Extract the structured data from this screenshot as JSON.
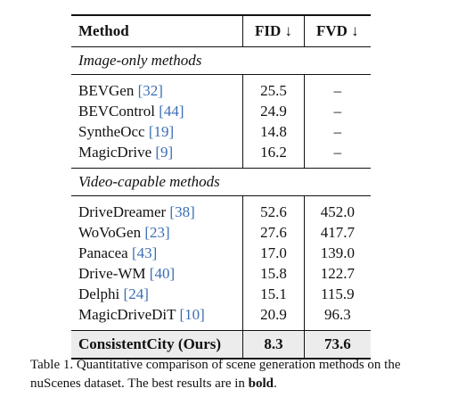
{
  "table": {
    "headers": {
      "method": "Method",
      "fid": "FID ↓",
      "fvd": "FVD ↓"
    },
    "sections": [
      {
        "title": "Image-only methods",
        "rows": [
          {
            "method": "BEVGen ",
            "cite": "[32]",
            "fid": "25.5",
            "fvd": "–"
          },
          {
            "method": "BEVControl ",
            "cite": "[44]",
            "fid": "24.9",
            "fvd": "–"
          },
          {
            "method": "SyntheOcc ",
            "cite": "[19]",
            "fid": "14.8",
            "fvd": "–"
          },
          {
            "method": "MagicDrive ",
            "cite": "[9]",
            "fid": "16.2",
            "fvd": "–"
          }
        ]
      },
      {
        "title": "Video-capable methods",
        "rows": [
          {
            "method": "DriveDreamer ",
            "cite": "[38]",
            "fid": "52.6",
            "fvd": "452.0"
          },
          {
            "method": "WoVoGen ",
            "cite": "[23]",
            "fid": "27.6",
            "fvd": "417.7"
          },
          {
            "method": "Panacea ",
            "cite": "[43]",
            "fid": "17.0",
            "fvd": "139.0"
          },
          {
            "method": "Drive-WM ",
            "cite": "[40]",
            "fid": "15.8",
            "fvd": "122.7"
          },
          {
            "method": "Delphi ",
            "cite": "[24]",
            "fid": "15.1",
            "fvd": "115.9"
          },
          {
            "method": "MagicDriveDiT ",
            "cite": "[10]",
            "fid": "20.9",
            "fvd": "96.3"
          }
        ]
      }
    ],
    "best": {
      "method": "ConsistentCity (Ours)",
      "fid": "8.3",
      "fvd": "73.6"
    }
  },
  "caption": {
    "text": "Table 1. Quantitative comparison of scene generation methods on the nuScenes dataset. The best results are in ",
    "bold": "bold",
    "end": "."
  },
  "colors": {
    "citation": "#3a6db5",
    "highlight_row": "#ececec"
  }
}
